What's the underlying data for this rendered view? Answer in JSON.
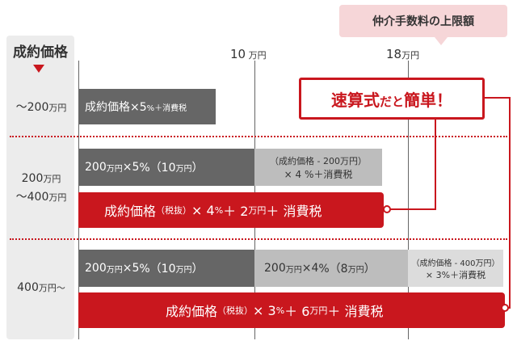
{
  "callout": {
    "text": "仲介手数料の上限額"
  },
  "left_column": {
    "title": "成約価格",
    "rows": [
      {
        "range": "～200",
        "unit": "万円"
      },
      {
        "line1": "200",
        "unit1": "万円",
        "line2": "～400",
        "unit2": "万円"
      },
      {
        "range": "400",
        "unit": "万円～"
      }
    ]
  },
  "axis": [
    {
      "value": "10",
      "unit": " 万円"
    },
    {
      "value": "18",
      "unit": "万円"
    }
  ],
  "easy_label": {
    "main": "速算式",
    "small": "だと",
    "main2": "簡単！"
  },
  "row1": {
    "bar": {
      "a": "成約価格×5",
      "b": "%＋消費税"
    }
  },
  "row2": {
    "dark": {
      "a": "200",
      "b": "万円",
      "c": "×5",
      "d": "%（10",
      "e": "万円",
      "f": "）"
    },
    "light": {
      "line1": "（成約価格 - 200万円）",
      "line2": "× 4 %＋消費税"
    },
    "red": {
      "a": "成約価格",
      "b": "（税抜）",
      "c": "× 4 ",
      "d": "%",
      "e": "＋ 2 ",
      "f": "万円",
      "g": "＋ 消費税"
    }
  },
  "row3": {
    "dark": {
      "a": "200",
      "b": "万円",
      "c": "×5",
      "d": "%（10",
      "e": "万円",
      "f": "）"
    },
    "light": {
      "a": "200",
      "b": "万円",
      "c": "×4",
      "d": "%（8",
      "e": "万円",
      "f": "）"
    },
    "light2": {
      "line1": "（成約価格 - 400万円）",
      "line2": "× 3%＋消費税"
    },
    "red": {
      "a": "成約価格",
      "b": "（税抜）",
      "c": "× 3 ",
      "d": "%",
      "e": "＋ 6 ",
      "f": "万円",
      "g": "＋ 消費税"
    }
  },
  "colors": {
    "red": "#c9171e",
    "dark": "#666666",
    "light": "#bdbdbd",
    "pink": "#f6d6d8"
  }
}
